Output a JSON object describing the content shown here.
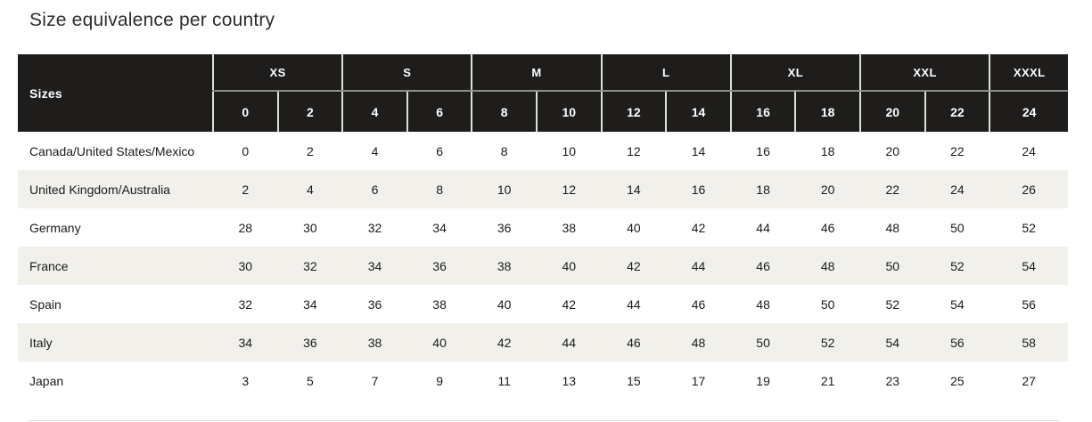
{
  "page_title": "Size equivalence per country",
  "colors": {
    "header_bg": "#1e1d1b",
    "header_text": "#ffffff",
    "stripe_bg": "#f1f0eb",
    "body_text": "#1b1b1b",
    "title_text": "#2d2d2d",
    "divider": "#dddddc"
  },
  "chart_data": {
    "type": "table",
    "title": "Size equivalence per country",
    "corner_header": "Sizes",
    "column_groups": [
      {
        "label": "XS",
        "span": 2
      },
      {
        "label": "S",
        "span": 2
      },
      {
        "label": "M",
        "span": 2
      },
      {
        "label": "L",
        "span": 2
      },
      {
        "label": "XL",
        "span": 2
      },
      {
        "label": "XXL",
        "span": 2
      },
      {
        "label": "XXXL",
        "span": 1
      }
    ],
    "columns": [
      "0",
      "2",
      "4",
      "6",
      "8",
      "10",
      "12",
      "14",
      "16",
      "18",
      "20",
      "22",
      "24"
    ],
    "rows": [
      {
        "label": "Canada/United States/Mexico",
        "values": [
          "0",
          "2",
          "4",
          "6",
          "8",
          "10",
          "12",
          "14",
          "16",
          "18",
          "20",
          "22",
          "24"
        ]
      },
      {
        "label": "United Kingdom/Australia",
        "values": [
          "2",
          "4",
          "6",
          "8",
          "10",
          "12",
          "14",
          "16",
          "18",
          "20",
          "22",
          "24",
          "26"
        ]
      },
      {
        "label": "Germany",
        "values": [
          "28",
          "30",
          "32",
          "34",
          "36",
          "38",
          "40",
          "42",
          "44",
          "46",
          "48",
          "50",
          "52"
        ]
      },
      {
        "label": "France",
        "values": [
          "30",
          "32",
          "34",
          "36",
          "38",
          "40",
          "42",
          "44",
          "46",
          "48",
          "50",
          "52",
          "54"
        ]
      },
      {
        "label": "Spain",
        "values": [
          "32",
          "34",
          "36",
          "38",
          "40",
          "42",
          "44",
          "46",
          "48",
          "50",
          "52",
          "54",
          "56"
        ]
      },
      {
        "label": "Italy",
        "values": [
          "34",
          "36",
          "38",
          "40",
          "42",
          "44",
          "46",
          "48",
          "50",
          "52",
          "54",
          "56",
          "58"
        ]
      },
      {
        "label": "Japan",
        "values": [
          "3",
          "5",
          "7",
          "9",
          "11",
          "13",
          "15",
          "17",
          "19",
          "21",
          "23",
          "25",
          "27"
        ]
      }
    ],
    "layout": {
      "striped_rows": "even rows (2nd, 4th, 6th) have light warm-gray background",
      "header_style": "dark near-black cells with light vertical separators",
      "grid": "no borders in table body"
    }
  }
}
